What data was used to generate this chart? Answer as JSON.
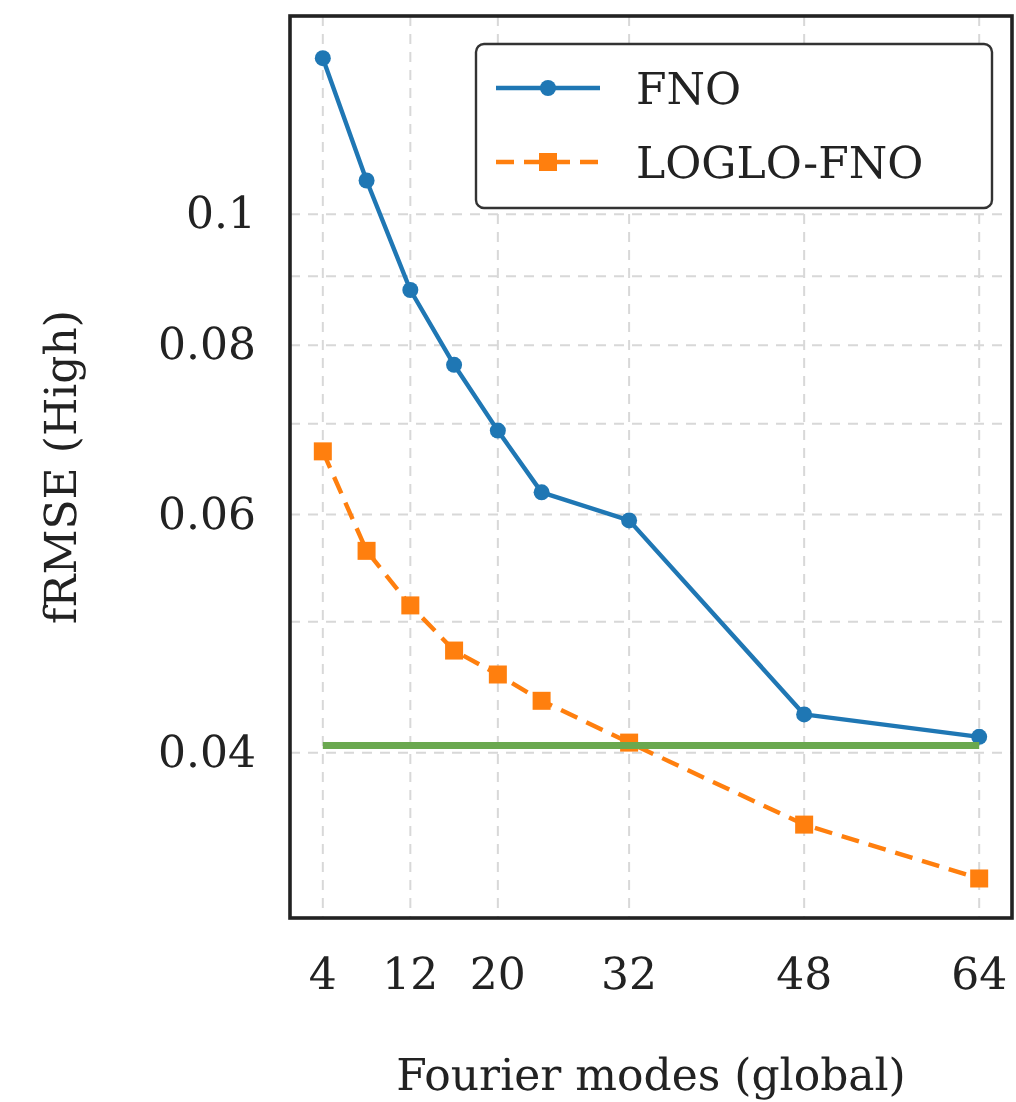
{
  "chart_data": {
    "type": "line",
    "xlabel": "Fourier modes (global)",
    "ylabel": "fRMSE (High)",
    "log": "y",
    "grid": true,
    "legend": "top right",
    "xlim": [
      1,
      67
    ],
    "xticks": [
      4,
      12,
      20,
      32,
      48,
      64
    ],
    "ylim": [
      0.0302,
      0.1401
    ],
    "yticks": [
      {
        "value": 0.04,
        "label": "0.04"
      },
      {
        "value": 0.05,
        "label": null
      },
      {
        "value": 0.06,
        "label": "0.06"
      },
      {
        "value": 0.07,
        "label": null
      },
      {
        "value": 0.08,
        "label": "0.08"
      },
      {
        "value": 0.09,
        "label": null
      },
      {
        "value": 0.1,
        "label": "0.1"
      }
    ],
    "series": [
      {
        "name": "FNO",
        "color": "#1f77b4",
        "marker": "circle",
        "line_style": "solid",
        "x": [
          4,
          8,
          12,
          16,
          20,
          24,
          32,
          48,
          64
        ],
        "values": [
          0.1304,
          0.1059,
          0.0879,
          0.0774,
          0.0692,
          0.0623,
          0.0594,
          0.0427,
          0.0411
        ]
      },
      {
        "name": "LOGLO-FNO",
        "color": "#ff7f0e",
        "marker": "square",
        "line_style": "dashed",
        "x": [
          4,
          8,
          12,
          16,
          20,
          24,
          32,
          48,
          64
        ],
        "values": [
          0.0668,
          0.0564,
          0.0514,
          0.0476,
          0.0457,
          0.0437,
          0.0407,
          0.0354,
          0.0323
        ]
      },
      {
        "color": "#6aa84f",
        "marker": "none",
        "line_style": "solid",
        "x": [
          4,
          64
        ],
        "values": [
          0.0405,
          0.0405
        ]
      }
    ]
  }
}
